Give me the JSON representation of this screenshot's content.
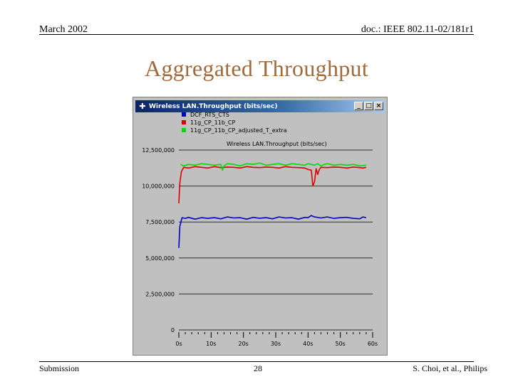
{
  "header": {
    "date": "March 2002",
    "doc": "doc.: IEEE 802.11-02/181r1"
  },
  "slide": {
    "title": "Aggregated Throughput"
  },
  "window": {
    "title": "Wireless LAN.Throughput (bits/sec)",
    "controls": {
      "minimize": "_",
      "maximize": "□",
      "close": "×"
    },
    "chart_subtitle": "Wireless LAN.Throughput (bits/sec)"
  },
  "footer": {
    "left": "Submission",
    "page": "28",
    "right": "S. Choi, et al., Philips"
  },
  "colors": {
    "title": "#a06a3a",
    "series1": "#0000cc",
    "series2": "#dd0000",
    "series3": "#00dd00"
  },
  "chart_data": {
    "type": "line",
    "title": "Wireless LAN.Throughput (bits/sec)",
    "xlim": [
      0,
      60
    ],
    "ylim": [
      0,
      12500000
    ],
    "x_ticks": [
      "0s",
      "10s",
      "20s",
      "30s",
      "40s",
      "50s",
      "60s"
    ],
    "y_ticks": [
      "0",
      "2,500,000",
      "5,000,000",
      "7,500,000",
      "10,000,000",
      "12,500,000"
    ],
    "series": [
      {
        "name": "DCF_RTS_CTS",
        "color": "#0000cc",
        "points": [
          [
            0,
            5700000
          ],
          [
            0.3,
            7200000
          ],
          [
            1,
            7800000
          ],
          [
            2,
            7750000
          ],
          [
            3,
            7820000
          ],
          [
            5,
            7700000
          ],
          [
            7,
            7800000
          ],
          [
            9,
            7750000
          ],
          [
            11,
            7800000
          ],
          [
            13,
            7720000
          ],
          [
            15,
            7850000
          ],
          [
            17,
            7780000
          ],
          [
            19,
            7800000
          ],
          [
            21,
            7700000
          ],
          [
            23,
            7820000
          ],
          [
            25,
            7760000
          ],
          [
            27,
            7800000
          ],
          [
            29,
            7720000
          ],
          [
            31,
            7850000
          ],
          [
            33,
            7780000
          ],
          [
            35,
            7800000
          ],
          [
            37,
            7700000
          ],
          [
            39,
            7820000
          ],
          [
            40,
            7800000
          ],
          [
            41,
            7950000
          ],
          [
            42,
            7850000
          ],
          [
            44,
            7780000
          ],
          [
            46,
            7850000
          ],
          [
            48,
            7750000
          ],
          [
            50,
            7800000
          ],
          [
            52,
            7820000
          ],
          [
            54,
            7750000
          ],
          [
            56,
            7720000
          ],
          [
            57,
            7850000
          ],
          [
            58,
            7800000
          ]
        ]
      },
      {
        "name": "11g_CP_11b_CP",
        "color": "#dd0000",
        "points": [
          [
            0,
            8800000
          ],
          [
            0.3,
            10200000
          ],
          [
            0.8,
            11000000
          ],
          [
            1.5,
            11300000
          ],
          [
            3,
            11250000
          ],
          [
            5,
            11350000
          ],
          [
            7,
            11300000
          ],
          [
            9,
            11250000
          ],
          [
            11,
            11350000
          ],
          [
            13,
            11280000
          ],
          [
            15,
            11320000
          ],
          [
            17,
            11300000
          ],
          [
            19,
            11250000
          ],
          [
            21,
            11350000
          ],
          [
            23,
            11300000
          ],
          [
            25,
            11280000
          ],
          [
            27,
            11320000
          ],
          [
            29,
            11300000
          ],
          [
            31,
            11250000
          ],
          [
            33,
            11350000
          ],
          [
            35,
            11300000
          ],
          [
            37,
            11280000
          ],
          [
            39,
            11250000
          ],
          [
            40,
            11150000
          ],
          [
            41,
            11100000
          ],
          [
            41.5,
            10000000
          ],
          [
            42,
            10300000
          ],
          [
            42.5,
            11200000
          ],
          [
            43,
            10800000
          ],
          [
            43.5,
            11150000
          ],
          [
            44,
            11300000
          ],
          [
            46,
            11280000
          ],
          [
            48,
            11320000
          ],
          [
            50,
            11300000
          ],
          [
            52,
            11250000
          ],
          [
            54,
            11320000
          ],
          [
            56,
            11280000
          ],
          [
            57,
            11250000
          ],
          [
            58,
            11300000
          ]
        ]
      },
      {
        "name": "11g_CP_11b_CP_adjusted_T_extra",
        "color": "#00dd00",
        "points": [
          [
            0.5,
            11500000
          ],
          [
            1.5,
            11400000
          ],
          [
            3,
            11500000
          ],
          [
            5,
            11450000
          ],
          [
            7,
            11550000
          ],
          [
            9,
            11500000
          ],
          [
            11,
            11450000
          ],
          [
            13,
            11500000
          ],
          [
            13.5,
            11100000
          ],
          [
            14,
            11400000
          ],
          [
            15,
            11550000
          ],
          [
            17,
            11500000
          ],
          [
            19,
            11400000
          ],
          [
            21,
            11550000
          ],
          [
            23,
            11500000
          ],
          [
            25,
            11600000
          ],
          [
            27,
            11450000
          ],
          [
            29,
            11500000
          ],
          [
            31,
            11550000
          ],
          [
            33,
            11450000
          ],
          [
            35,
            11550000
          ],
          [
            37,
            11500000
          ],
          [
            39,
            11450000
          ],
          [
            40,
            11550000
          ],
          [
            41,
            11500000
          ],
          [
            42,
            11450000
          ],
          [
            43,
            11550000
          ],
          [
            44,
            11400000
          ],
          [
            45,
            11500000
          ],
          [
            46,
            11550000
          ],
          [
            48,
            11450000
          ],
          [
            50,
            11500000
          ],
          [
            52,
            11450000
          ],
          [
            54,
            11500000
          ],
          [
            56,
            11400000
          ],
          [
            58,
            11450000
          ]
        ]
      }
    ]
  }
}
